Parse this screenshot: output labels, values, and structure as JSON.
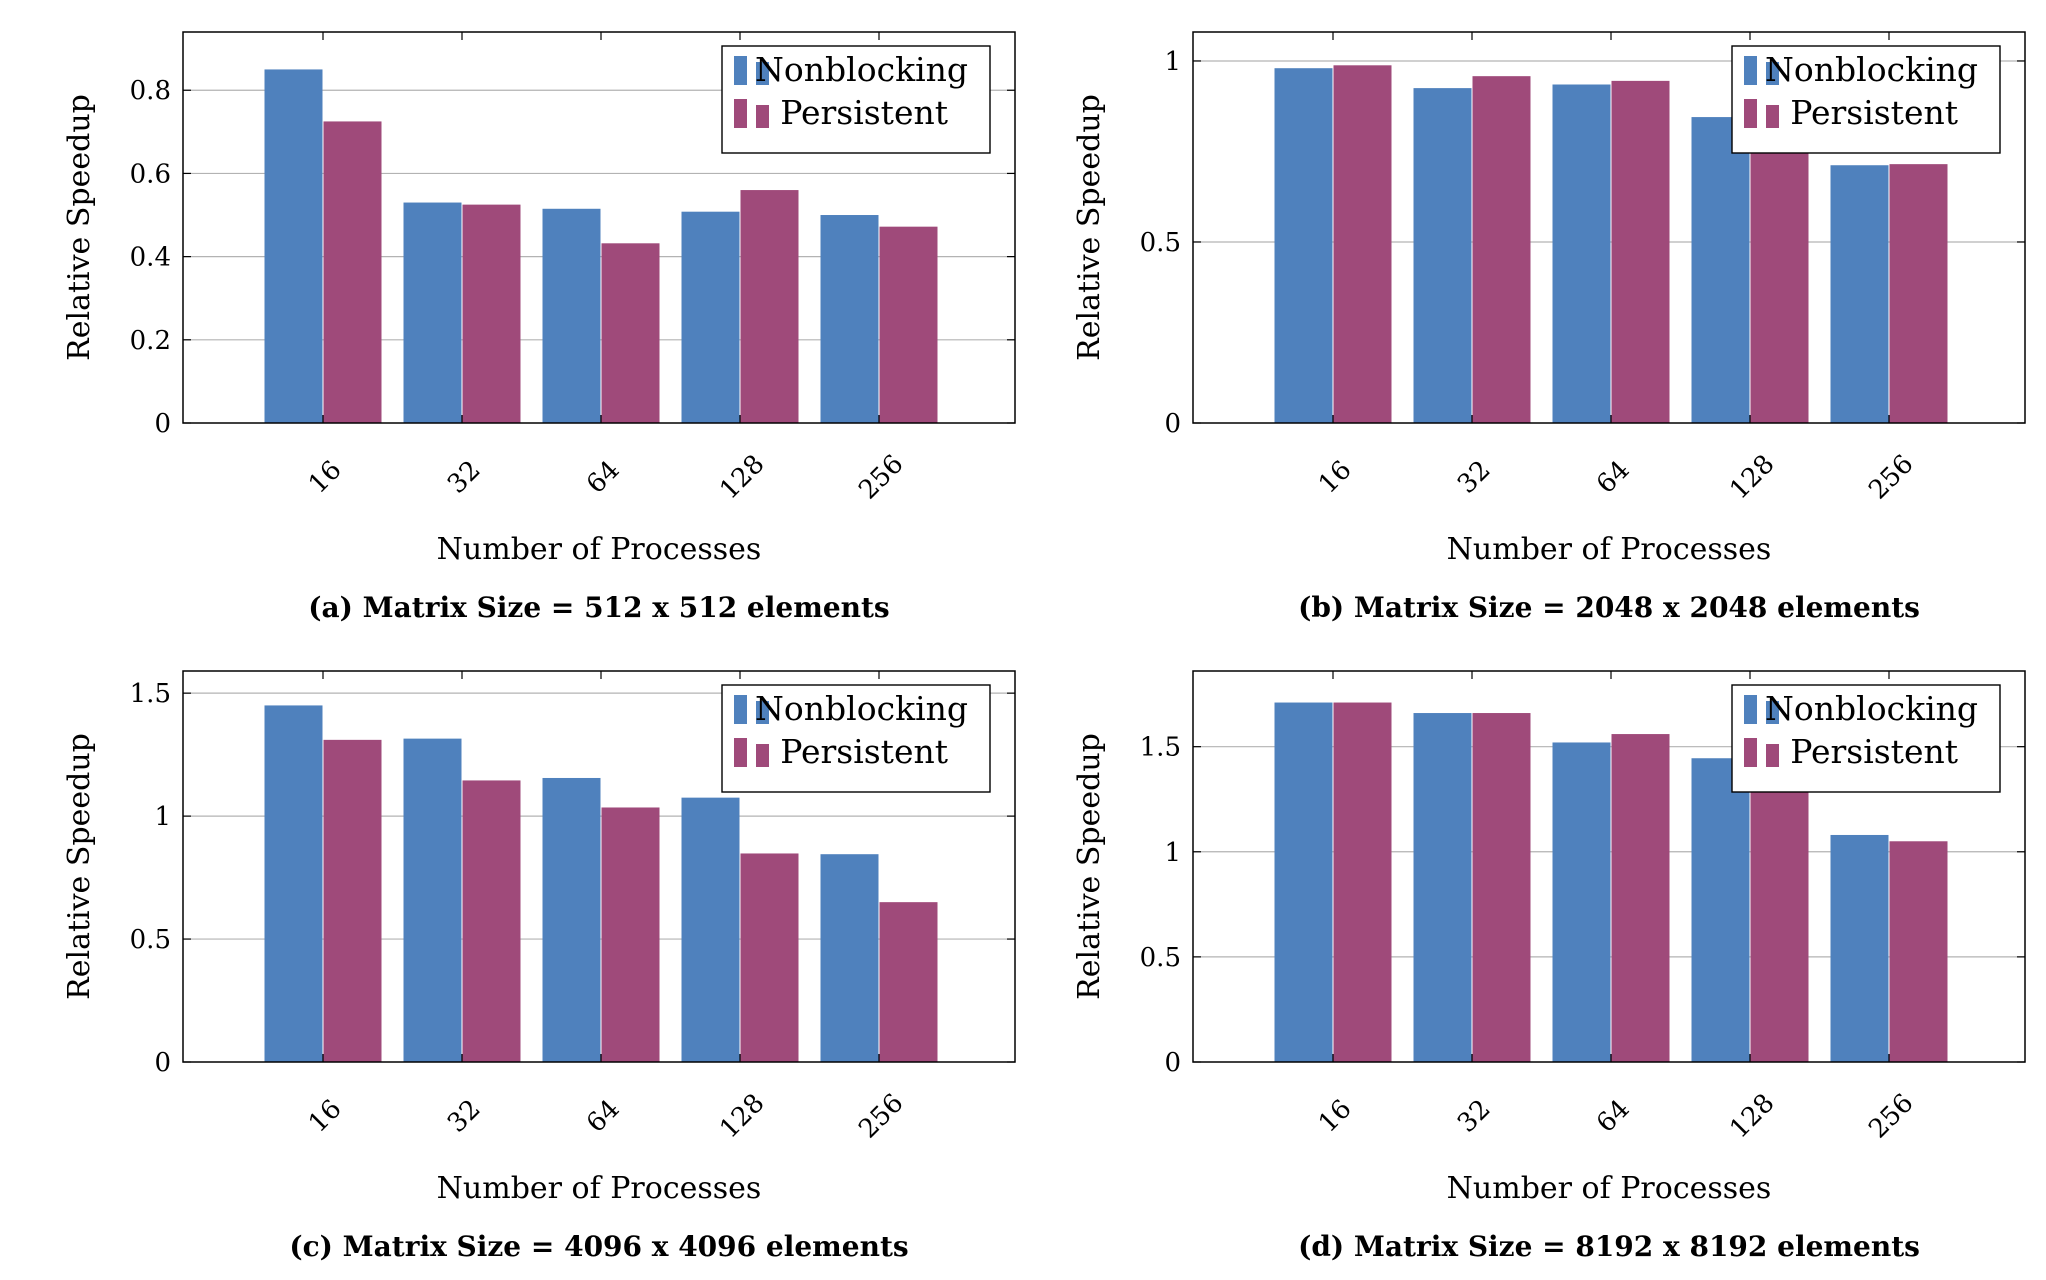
{
  "colors": {
    "nonblocking": "#4f81bd",
    "persistent": "#9f4a7a",
    "grid": "#b3b3b3",
    "axis": "#000000"
  },
  "chart_data": [
    {
      "type": "bar",
      "caption": "(a) Matrix Size = 512 x 512 elements",
      "xlabel": "Number of Processes",
      "ylabel": "Relative Speedup",
      "categories": [
        "16",
        "32",
        "64",
        "128",
        "256"
      ],
      "series": [
        {
          "name": "Nonblocking",
          "values": [
            0.85,
            0.53,
            0.515,
            0.508,
            0.5
          ]
        },
        {
          "name": "Persistent",
          "values": [
            0.725,
            0.525,
            0.432,
            0.56,
            0.472
          ]
        }
      ],
      "ylim": [
        0,
        0.94
      ],
      "yticks": [
        0,
        0.2,
        0.4,
        0.6,
        0.8
      ],
      "ytick_labels": [
        "0",
        "0.2",
        "0.4",
        "0.6",
        "0.8"
      ],
      "grid": true,
      "legend_position": "top-right"
    },
    {
      "type": "bar",
      "caption": "(b) Matrix Size = 2048 x 2048 elements",
      "xlabel": "Number of Processes",
      "ylabel": "Relative Speedup",
      "categories": [
        "16",
        "32",
        "64",
        "128",
        "256"
      ],
      "series": [
        {
          "name": "Nonblocking",
          "values": [
            0.98,
            0.925,
            0.935,
            0.845,
            0.712
          ]
        },
        {
          "name": "Persistent",
          "values": [
            0.988,
            0.958,
            0.945,
            0.85,
            0.715
          ]
        }
      ],
      "ylim": [
        0,
        1.08
      ],
      "yticks": [
        0,
        0.5,
        1
      ],
      "ytick_labels": [
        "0",
        "0.5",
        "1"
      ],
      "grid": true,
      "legend_position": "top-right"
    },
    {
      "type": "bar",
      "caption": "(c) Matrix Size = 4096 x 4096 elements",
      "xlabel": "Number of Processes",
      "ylabel": "Relative Speedup",
      "categories": [
        "16",
        "32",
        "64",
        "128",
        "256"
      ],
      "series": [
        {
          "name": "Nonblocking",
          "values": [
            1.45,
            1.315,
            1.155,
            1.075,
            0.845
          ]
        },
        {
          "name": "Persistent",
          "values": [
            1.31,
            1.145,
            1.035,
            0.848,
            0.65
          ]
        }
      ],
      "ylim": [
        0,
        1.59
      ],
      "yticks": [
        0,
        0.5,
        1,
        1.5
      ],
      "ytick_labels": [
        "0",
        "0.5",
        "1",
        "1.5"
      ],
      "grid": true,
      "legend_position": "top-right"
    },
    {
      "type": "bar",
      "caption": "(d) Matrix Size = 8192 x 8192 elements",
      "xlabel": "Number of Processes",
      "ylabel": "Relative Speedup",
      "categories": [
        "16",
        "32",
        "64",
        "128",
        "256"
      ],
      "series": [
        {
          "name": "Nonblocking",
          "values": [
            1.71,
            1.66,
            1.52,
            1.445,
            1.08
          ]
        },
        {
          "name": "Persistent",
          "values": [
            1.71,
            1.66,
            1.56,
            1.35,
            1.05
          ]
        }
      ],
      "ylim": [
        0,
        1.86
      ],
      "yticks": [
        0,
        0.5,
        1,
        1.5
      ],
      "ytick_labels": [
        "0",
        "0.5",
        "1",
        "1.5"
      ],
      "grid": true,
      "legend_position": "top-right"
    }
  ]
}
